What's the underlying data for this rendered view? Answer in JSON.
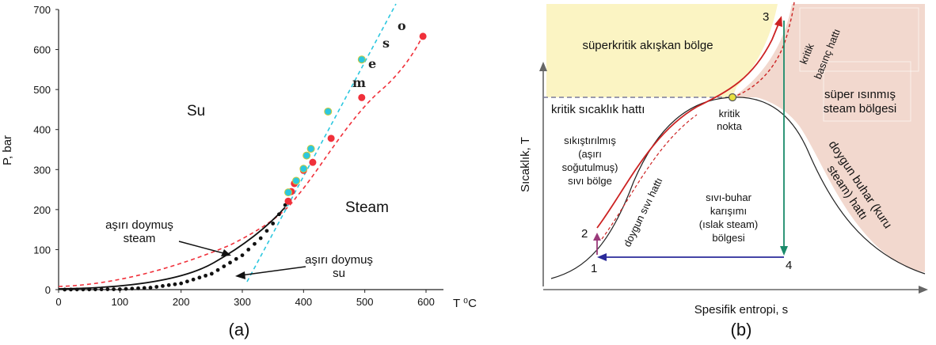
{
  "chart_a": {
    "type": "scatter",
    "ylabel": "P, bar",
    "xlabel": "T ⁰C",
    "caption": "(a)",
    "xlim": [
      0,
      600
    ],
    "ylim": [
      0,
      700
    ],
    "xticks": [
      "0",
      "100",
      "200",
      "300",
      "400",
      "500",
      "600"
    ],
    "yticks": [
      "0",
      "100",
      "200",
      "300",
      "400",
      "500",
      "600",
      "700"
    ],
    "regions": {
      "water": "Su",
      "steam": "Steam"
    },
    "annotations": {
      "superheated_line1": "aşırı doymuş",
      "superheated_line2": "steam",
      "subcooled_line1": "aşırı doymuş",
      "subcooled_line2": "su"
    },
    "steam_letters": [
      "m",
      "e",
      "s",
      "o"
    ],
    "saturation_points_x": [
      10,
      20,
      30,
      40,
      50,
      60,
      70,
      80,
      90,
      100,
      110,
      120,
      130,
      140,
      150,
      160,
      170,
      180,
      190,
      200,
      210,
      220,
      230,
      240,
      250,
      260,
      270,
      280,
      290,
      300,
      310,
      320,
      330,
      340,
      350,
      360,
      370
    ],
    "red_points": [
      {
        "t": 375,
        "p": 221
      },
      {
        "t": 380,
        "p": 245
      },
      {
        "t": 385,
        "p": 265
      },
      {
        "t": 400,
        "p": 298
      },
      {
        "t": 415,
        "p": 318
      },
      {
        "t": 445,
        "p": 378
      },
      {
        "t": 495,
        "p": 480
      },
      {
        "t": 595,
        "p": 633
      }
    ],
    "cyan_points": [
      {
        "t": 375,
        "p": 243
      },
      {
        "t": 388,
        "p": 272
      },
      {
        "t": 400,
        "p": 302
      },
      {
        "t": 405,
        "p": 335
      },
      {
        "t": 412,
        "p": 352
      },
      {
        "t": 440,
        "p": 445
      },
      {
        "t": 495,
        "p": 575
      }
    ],
    "colors": {
      "red": "#f0303a",
      "cyan": "#2cc7df",
      "black": "#111111"
    }
  },
  "chart_b": {
    "caption": "(b)",
    "ylabel": "Sıcaklık, T",
    "xlabel": "Spesifik entropi, s",
    "supercritical": "süperkritik akışkan bölge",
    "critical_temp_line": "kritik sıcaklık hattı",
    "critical_pressure_l1": "kritik",
    "critical_pressure_l2": "basınç hattı",
    "superheated_l1": "süper ısınmış",
    "superheated_l2": "steam bölgesi",
    "critical_point_l1": "kritik",
    "critical_point_l2": "nokta",
    "compressed_l1": "sıkıştırılmış",
    "compressed_l2": "(aşırı",
    "compressed_l3": "soğutulmuş)",
    "compressed_l4": "sıvı bölge",
    "sat_liquid": "doygun sıvı hattı",
    "mixture_l1": "sıvı-buhar",
    "mixture_l2": "karışımı",
    "mixture_l3": "(ıslak steam)",
    "mixture_l4": "bölgesi",
    "sat_vapor_l1": "doygun buhar (kuru",
    "sat_vapor_l2": "steam) hattı",
    "states": [
      "1",
      "2",
      "3",
      "4"
    ],
    "colors": {
      "supercritical": "#fbf4c3",
      "superheated": "#f2d8ce",
      "cycle_red": "#cc2222",
      "cycle_green": "#1a8a6a",
      "cycle_blue": "#2a2a9a",
      "cycle_purple": "#9a3a7a"
    }
  }
}
